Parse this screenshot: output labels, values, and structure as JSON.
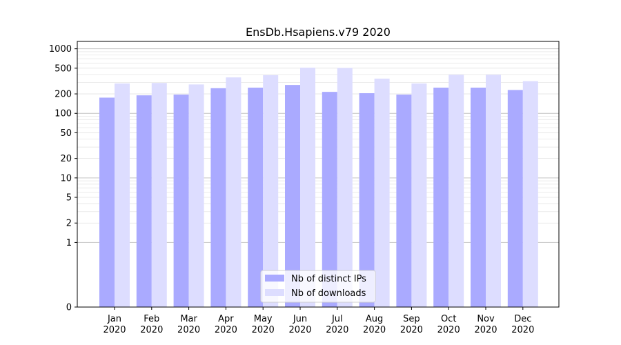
{
  "chart_data": {
    "type": "bar",
    "title": "EnsDb.Hsapiens.v79 2020",
    "xlabel": "",
    "ylabel": "",
    "categories": [
      "Jan\n2020",
      "Feb\n2020",
      "Mar\n2020",
      "Apr\n2020",
      "May\n2020",
      "Jun\n2020",
      "Jul\n2020",
      "Aug\n2020",
      "Sep\n2020",
      "Oct\n2020",
      "Nov\n2020",
      "Dec\n2020"
    ],
    "series": [
      {
        "name": "Nb of distinct IPs",
        "color": "#aaaaff",
        "values": [
          175,
          190,
          195,
          245,
          250,
          275,
          215,
          205,
          195,
          250,
          250,
          230
        ]
      },
      {
        "name": "Nb of downloads",
        "color": "#ddddff",
        "values": [
          290,
          295,
          280,
          360,
          390,
          510,
          505,
          345,
          290,
          395,
          395,
          315
        ]
      }
    ],
    "y_scale": "symlog",
    "ylim": [
      0,
      1300
    ],
    "y_ticks": [
      0,
      1,
      2,
      5,
      10,
      20,
      50,
      100,
      200,
      500,
      1000
    ],
    "grid": true,
    "legend_position": "bottom-center"
  }
}
